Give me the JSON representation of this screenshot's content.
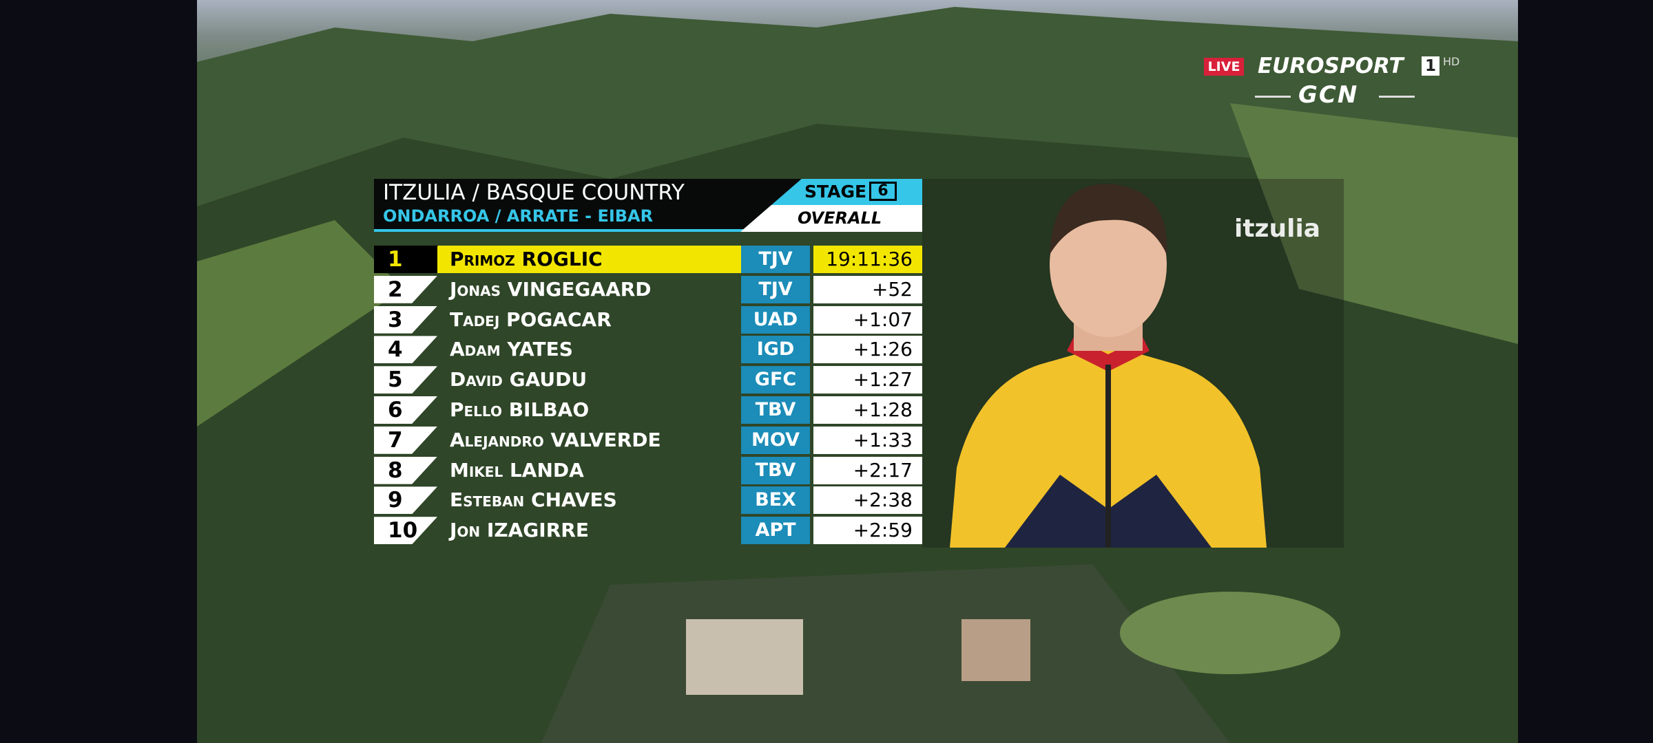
{
  "broadcast": {
    "live": "LIVE",
    "network": "EUROSPORT",
    "channel": "1",
    "quality": "HD",
    "partner": "GCN"
  },
  "race_logo": "itzulia",
  "standings": {
    "title": "ITZULIA / BASQUE COUNTRY",
    "route": "ONDARROA / ARRATE - EIBAR",
    "stage_label": "STAGE",
    "stage_number": 6,
    "classification": "OVERALL",
    "rows": [
      [
        1,
        "Primoz ROGLIC",
        "TJV",
        "19:11:36"
      ],
      [
        2,
        "Jonas VINGEGAARD",
        "TJV",
        "+52"
      ],
      [
        3,
        "Tadej POGACAR",
        "UAD",
        "+1:07"
      ],
      [
        4,
        "Adam YATES",
        "IGD",
        "+1:26"
      ],
      [
        5,
        "David GAUDU",
        "GFC",
        "+1:27"
      ],
      [
        6,
        "Pello BILBAO",
        "TBV",
        "+1:28"
      ],
      [
        7,
        "Alejandro VALVERDE",
        "MOV",
        "+1:33"
      ],
      [
        8,
        "Mikel LANDA",
        "TBV",
        "+2:17"
      ],
      [
        9,
        "Esteban CHAVES",
        "BEX",
        "+2:38"
      ],
      [
        10,
        "Jon IZAGIRRE",
        "APT",
        "+2:59"
      ]
    ]
  }
}
